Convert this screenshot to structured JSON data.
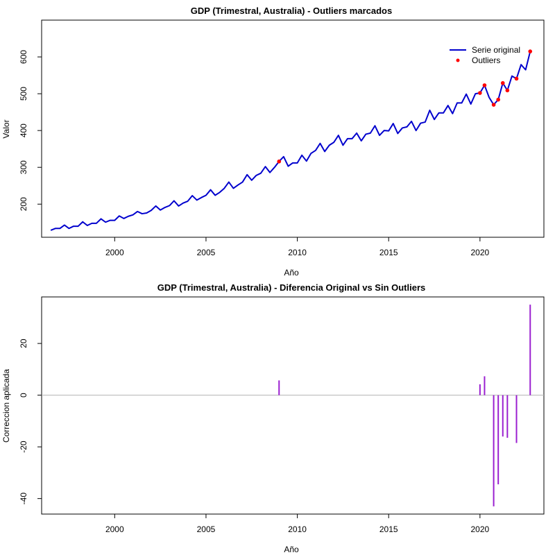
{
  "chart_data": [
    {
      "type": "line",
      "title": "GDP (Trimestral, Australia) - Outliers marcados",
      "xlabel": "Año",
      "ylabel": "Valor",
      "xlim": [
        1996.0,
        2023.5
      ],
      "ylim": [
        110,
        700
      ],
      "x_ticks": [
        2000,
        2005,
        2010,
        2015,
        2020
      ],
      "y_ticks": [
        200,
        300,
        400,
        500,
        600
      ],
      "legend": {
        "position": "top-right",
        "entries": [
          "Serie original",
          "Outliers"
        ]
      },
      "colors": {
        "line": "#0000cd",
        "outliers": "#ff0000"
      },
      "series": [
        {
          "name": "Serie original",
          "style": "line",
          "points": [
            [
              1996.5,
              129
            ],
            [
              1996.75,
              134
            ],
            [
              1997,
              134
            ],
            [
              1997.25,
              143
            ],
            [
              1997.5,
              134
            ],
            [
              1997.75,
              140
            ],
            [
              1998,
              140
            ],
            [
              1998.25,
              152
            ],
            [
              1998.5,
              142
            ],
            [
              1998.75,
              148
            ],
            [
              1999,
              148
            ],
            [
              1999.25,
              160
            ],
            [
              1999.5,
              151
            ],
            [
              1999.75,
              156
            ],
            [
              2000,
              156
            ],
            [
              2000.25,
              168
            ],
            [
              2000.5,
              161
            ],
            [
              2000.75,
              167
            ],
            [
              2001,
              171
            ],
            [
              2001.25,
              180
            ],
            [
              2001.5,
              174
            ],
            [
              2001.75,
              176
            ],
            [
              2002,
              183
            ],
            [
              2002.25,
              195
            ],
            [
              2002.5,
              184
            ],
            [
              2002.75,
              191
            ],
            [
              2003,
              196
            ],
            [
              2003.25,
              209
            ],
            [
              2003.5,
              195
            ],
            [
              2003.75,
              203
            ],
            [
              2004,
              208
            ],
            [
              2004.25,
              223
            ],
            [
              2004.5,
              211
            ],
            [
              2004.75,
              218
            ],
            [
              2005,
              224
            ],
            [
              2005.25,
              239
            ],
            [
              2005.5,
              224
            ],
            [
              2005.75,
              232
            ],
            [
              2006,
              243
            ],
            [
              2006.25,
              260
            ],
            [
              2006.5,
              243
            ],
            [
              2006.75,
              252
            ],
            [
              2007,
              260
            ],
            [
              2007.25,
              280
            ],
            [
              2007.5,
              265
            ],
            [
              2007.75,
              278
            ],
            [
              2008,
              284
            ],
            [
              2008.25,
              302
            ],
            [
              2008.5,
              286
            ],
            [
              2008.75,
              300
            ],
            [
              2009,
              316
            ],
            [
              2009.25,
              329
            ],
            [
              2009.5,
              303
            ],
            [
              2009.75,
              312
            ],
            [
              2010,
              312
            ],
            [
              2010.25,
              333
            ],
            [
              2010.5,
              317
            ],
            [
              2010.75,
              338
            ],
            [
              2011,
              346
            ],
            [
              2011.25,
              365
            ],
            [
              2011.5,
              343
            ],
            [
              2011.75,
              360
            ],
            [
              2012,
              368
            ],
            [
              2012.25,
              387
            ],
            [
              2012.5,
              360
            ],
            [
              2012.75,
              378
            ],
            [
              2013,
              378
            ],
            [
              2013.25,
              393
            ],
            [
              2013.5,
              372
            ],
            [
              2013.75,
              390
            ],
            [
              2014,
              393
            ],
            [
              2014.25,
              413
            ],
            [
              2014.5,
              387
            ],
            [
              2014.75,
              400
            ],
            [
              2015,
              399
            ],
            [
              2015.25,
              419
            ],
            [
              2015.5,
              392
            ],
            [
              2015.75,
              407
            ],
            [
              2016,
              410
            ],
            [
              2016.25,
              425
            ],
            [
              2016.5,
              400
            ],
            [
              2016.75,
              420
            ],
            [
              2017,
              423
            ],
            [
              2017.25,
              455
            ],
            [
              2017.5,
              430
            ],
            [
              2017.75,
              448
            ],
            [
              2018,
              448
            ],
            [
              2018.25,
              468
            ],
            [
              2018.5,
              446
            ],
            [
              2018.75,
              475
            ],
            [
              2019,
              475
            ],
            [
              2019.25,
              499
            ],
            [
              2019.5,
              472
            ],
            [
              2019.75,
              500
            ],
            [
              2020,
              502
            ],
            [
              2020.25,
              523
            ],
            [
              2020.5,
              490
            ],
            [
              2020.75,
              470
            ],
            [
              2021,
              484
            ],
            [
              2021.25,
              529
            ],
            [
              2021.5,
              509
            ],
            [
              2021.75,
              548
            ],
            [
              2022,
              541
            ],
            [
              2022.25,
              579
            ],
            [
              2022.5,
              565
            ],
            [
              2022.75,
              615
            ]
          ]
        },
        {
          "name": "Outliers",
          "style": "points",
          "points": [
            [
              2009,
              316
            ],
            [
              2020,
              502
            ],
            [
              2020.25,
              523
            ],
            [
              2020.75,
              470
            ],
            [
              2021,
              484
            ],
            [
              2021.25,
              529
            ],
            [
              2021.5,
              509
            ],
            [
              2022,
              541
            ],
            [
              2022.75,
              615
            ]
          ]
        }
      ]
    },
    {
      "type": "bar",
      "title": "GDP (Trimestral, Australia) - Diferencia Original vs Sin Outliers",
      "xlabel": "Año",
      "ylabel": "Correccion aplicada",
      "xlim": [
        1996.0,
        2023.5
      ],
      "ylim": [
        -46,
        38
      ],
      "x_ticks": [
        2000,
        2005,
        2010,
        2015,
        2020
      ],
      "y_ticks": [
        -40,
        -20,
        0,
        20
      ],
      "colors": {
        "bars": "#9a1fd0",
        "zero_line": "#b3b3b3"
      },
      "series": [
        {
          "style": "vertical-segments",
          "points": [
            [
              2009,
              5.7
            ],
            [
              2020,
              4.2
            ],
            [
              2020.25,
              7.3
            ],
            [
              2020.75,
              -43
            ],
            [
              2021,
              -34.5
            ],
            [
              2021.25,
              -16
            ],
            [
              2021.5,
              -16.5
            ],
            [
              2022,
              -18.5
            ],
            [
              2022.75,
              35
            ]
          ]
        }
      ]
    }
  ]
}
